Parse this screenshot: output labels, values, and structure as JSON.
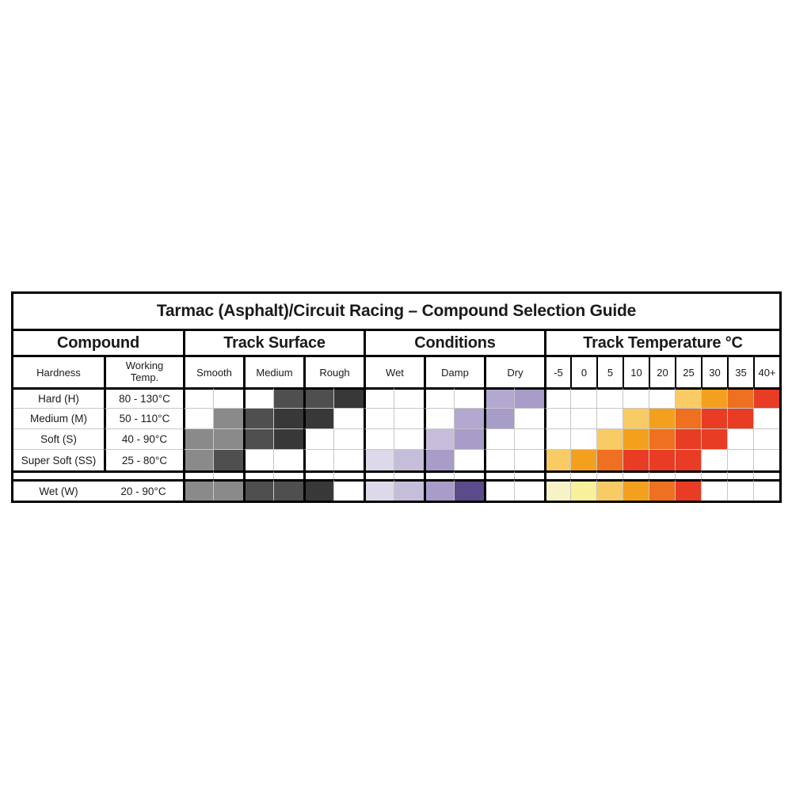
{
  "title": "Tarmac (Asphalt)/Circuit Racing – Compound Selection Guide",
  "palette": {
    "surface": [
      "#FFFFFF",
      "#8A8A8A",
      "#4F4F4F",
      "#383838"
    ],
    "conditions": [
      "#FFFFFF",
      "#DDD9EA",
      "#C6BDDA",
      "#B3A8D0",
      "#A89CC8",
      "#5B4B8A"
    ],
    "temperature": [
      "#FFFFFF",
      "#F7F3C6",
      "#F9F09B",
      "#F9CB64",
      "#F4A01F",
      "#EE7020",
      "#E83C24"
    ]
  },
  "chart_data": {
    "type": "heatmap",
    "title": "Tarmac (Asphalt)/Circuit Racing – Compound Selection Guide",
    "compound_group_label": "Compound",
    "row_header": {
      "hardness": "Hardness",
      "working_temp": "Working\nTemp."
    },
    "column_groups": [
      {
        "label": "Track Surface",
        "columns": [
          "Smooth",
          "Medium",
          "Rough"
        ],
        "subcells_per_column": 2
      },
      {
        "label": "Conditions",
        "columns": [
          "Wet",
          "Damp",
          "Dry"
        ],
        "subcells_per_column": 2
      },
      {
        "label": "Track Temperature °C",
        "columns": [
          "-5",
          "0",
          "5",
          "10",
          "20",
          "25",
          "30",
          "35",
          "40+"
        ],
        "subcells_per_column": 1
      }
    ],
    "rows": [
      {
        "compound": "Hard (H)",
        "working_temp": "80 - 130°C",
        "surface": [
          0,
          0,
          0,
          2,
          2,
          3
        ],
        "conditions": [
          0,
          0,
          0,
          0,
          3,
          4
        ],
        "temperature": [
          0,
          0,
          0,
          0,
          0,
          3,
          4,
          5,
          6
        ]
      },
      {
        "compound": "Medium (M)",
        "working_temp": "50 - 110°C",
        "surface": [
          0,
          1,
          2,
          3,
          3,
          0
        ],
        "conditions": [
          0,
          0,
          0,
          3,
          4,
          0
        ],
        "temperature": [
          0,
          0,
          0,
          3,
          4,
          5,
          6,
          6,
          0
        ]
      },
      {
        "compound": "Soft (S)",
        "working_temp": "40 - 90°C",
        "surface": [
          1,
          1,
          2,
          3,
          0,
          0
        ],
        "conditions": [
          0,
          0,
          2,
          4,
          0,
          0
        ],
        "temperature": [
          0,
          0,
          3,
          4,
          5,
          6,
          6,
          0,
          0
        ]
      },
      {
        "compound": "Super Soft (SS)",
        "working_temp": "25 - 80°C",
        "surface": [
          1,
          2,
          0,
          0,
          0,
          0
        ],
        "conditions": [
          1,
          2,
          4,
          0,
          0,
          0
        ],
        "temperature": [
          3,
          4,
          5,
          6,
          6,
          6,
          0,
          0,
          0
        ]
      },
      {
        "compound": "Wet (W)",
        "working_temp": "20 - 90°C",
        "separated": true,
        "surface": [
          1,
          1,
          2,
          2,
          3,
          0
        ],
        "conditions": [
          1,
          2,
          4,
          5,
          0,
          0
        ],
        "temperature": [
          1,
          2,
          3,
          4,
          5,
          6,
          0,
          0,
          0
        ]
      }
    ]
  }
}
